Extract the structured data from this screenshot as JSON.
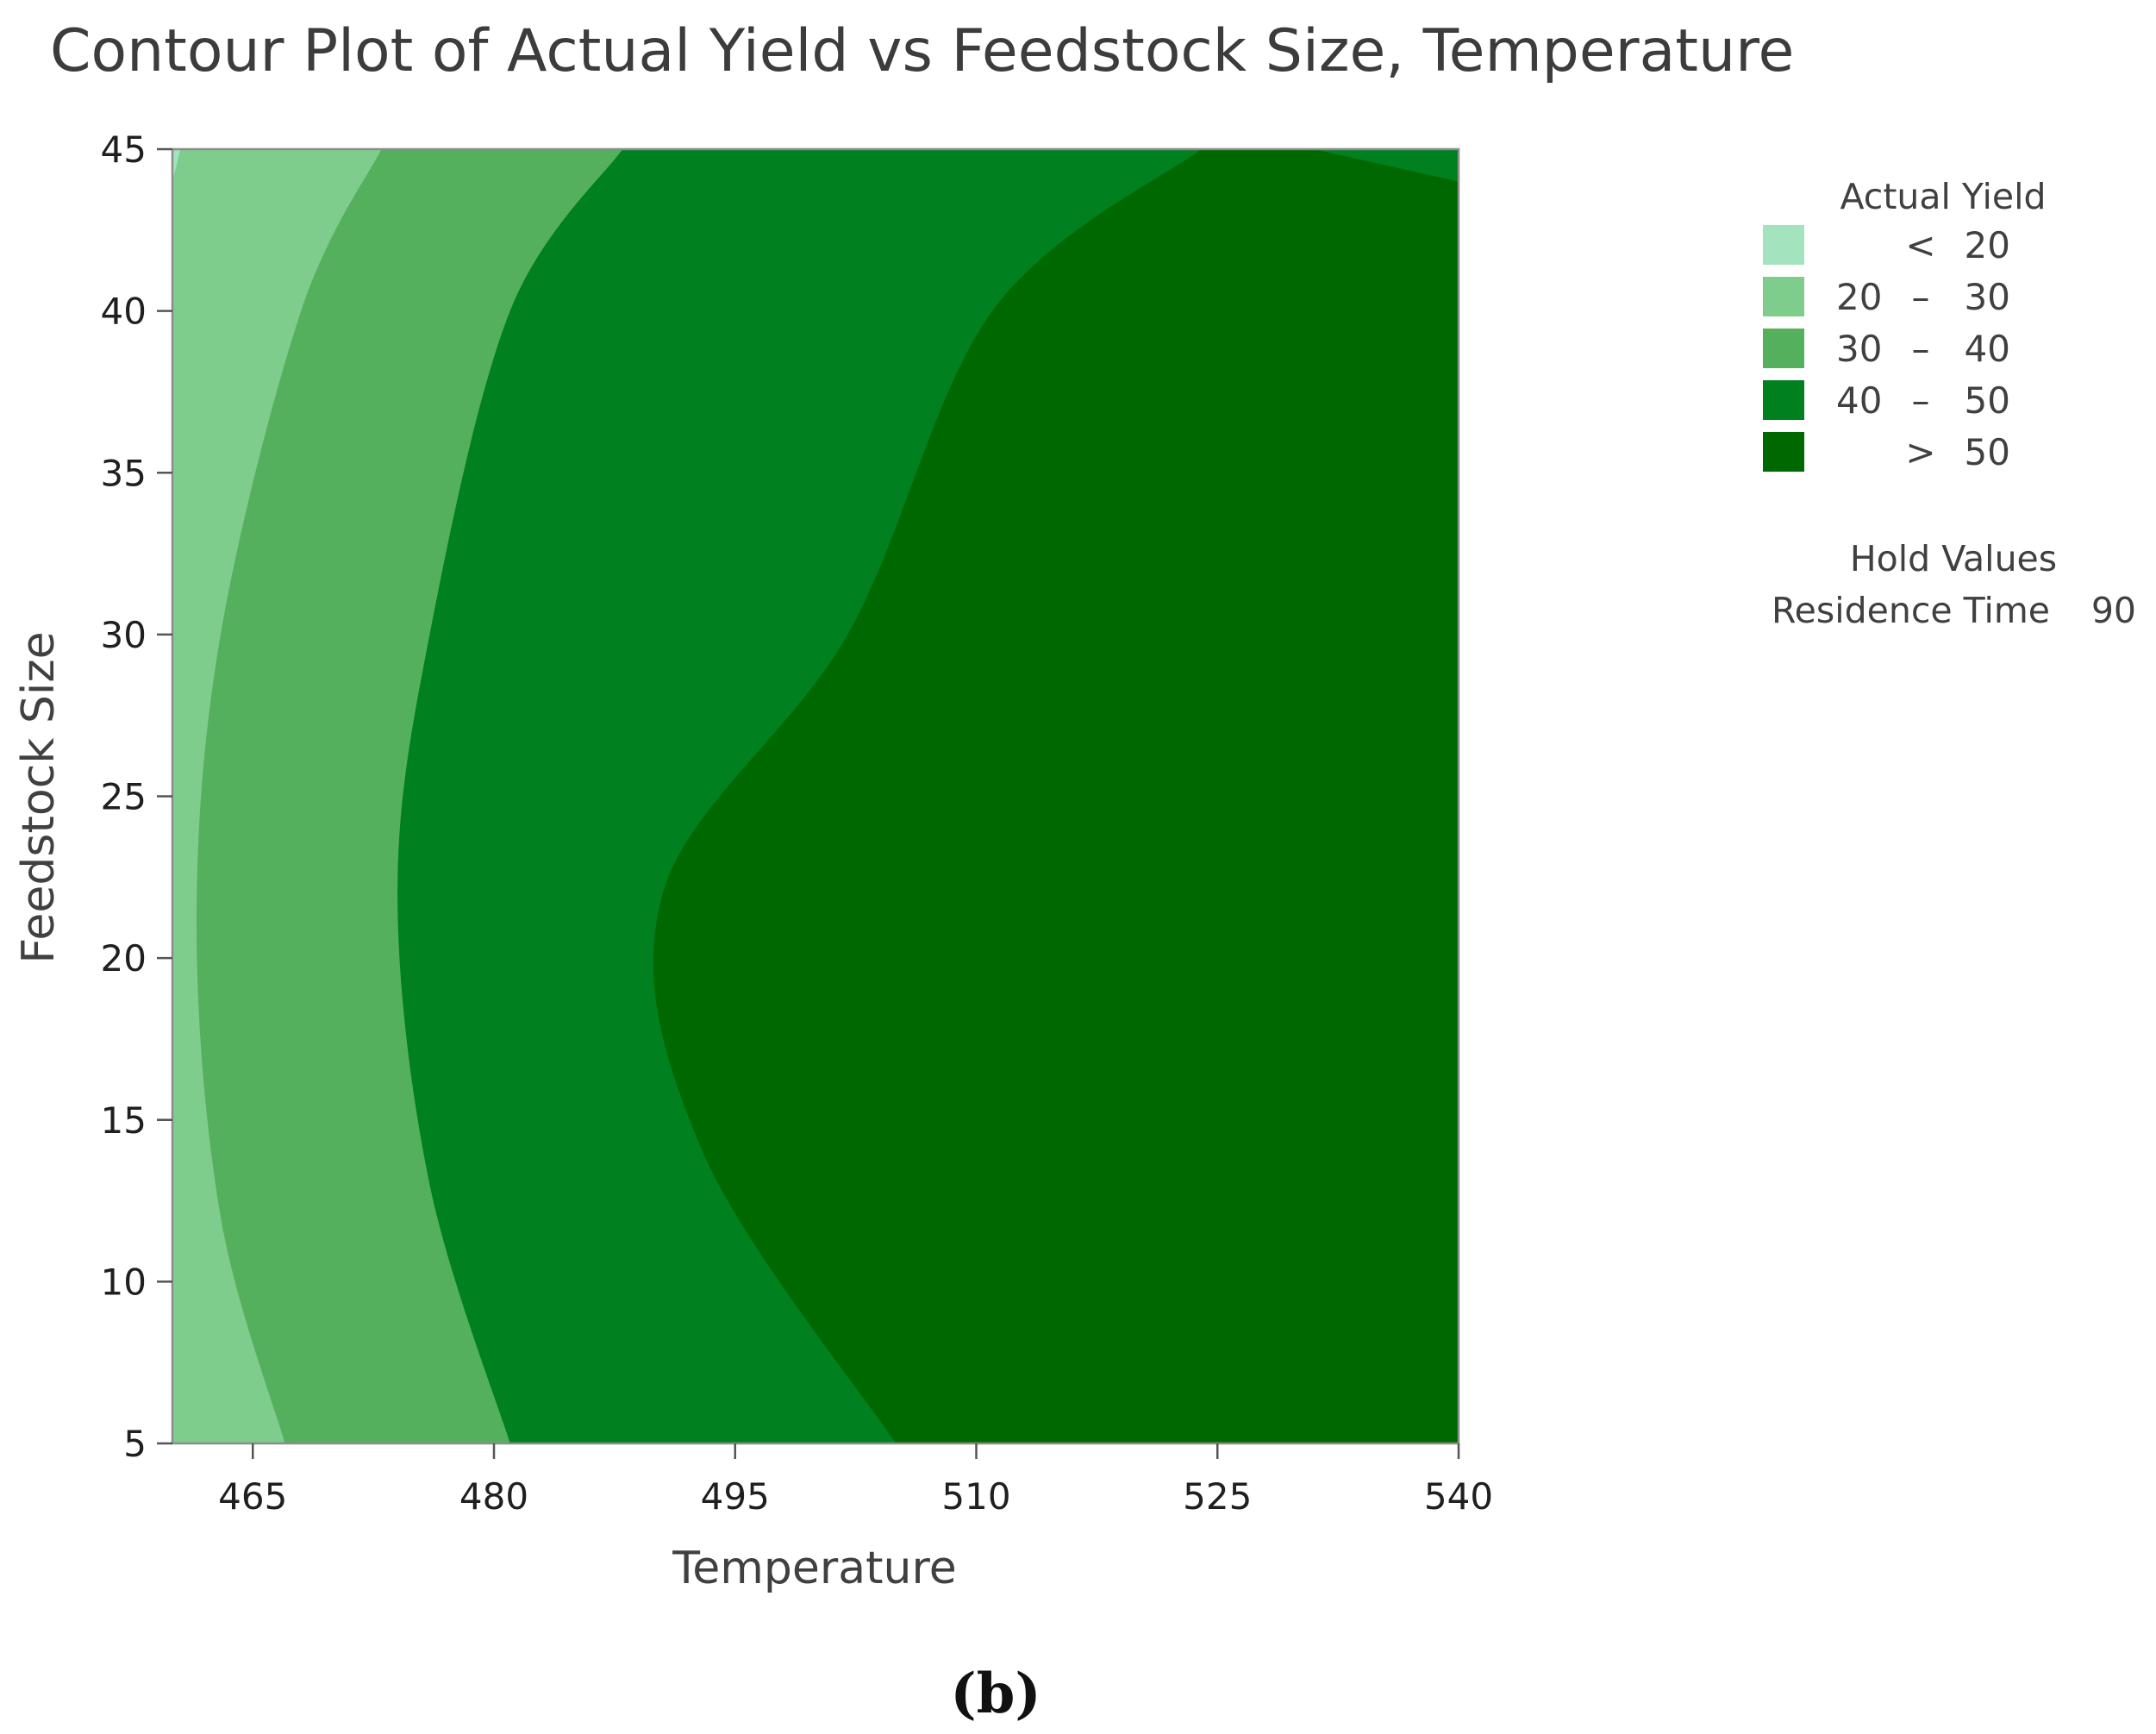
{
  "chart_data": {
    "type": "contour",
    "title": "Contour Plot of Actual Yield vs Feedstock Size, Temperature",
    "xlabel": "Temperature",
    "ylabel": "Feedstock Size",
    "xlim": [
      460,
      540
    ],
    "ylim": [
      5,
      45
    ],
    "x_ticks": [
      "465",
      "480",
      "495",
      "510",
      "525",
      "540"
    ],
    "y_ticks": [
      "5",
      "10",
      "15",
      "20",
      "25",
      "30",
      "35",
      "40",
      "45"
    ],
    "x_tick_values": [
      465,
      480,
      495,
      510,
      525,
      540
    ],
    "y_tick_values": [
      5,
      10,
      15,
      20,
      25,
      30,
      35,
      40,
      45
    ],
    "grid": false,
    "legend_position": "right",
    "legend": {
      "title": "Actual Yield",
      "levels": [
        {
          "low": "",
          "op": "<",
          "high": "20",
          "color": "#a3e3bd"
        },
        {
          "low": "20",
          "op": "–",
          "high": "30",
          "color": "#7fcd8d"
        },
        {
          "low": "30",
          "op": "–",
          "high": "40",
          "color": "#55b05e"
        },
        {
          "low": "40",
          "op": "–",
          "high": "50",
          "color": "#00801f"
        },
        {
          "low": "",
          "op": ">",
          "high": "50",
          "color": "#006800"
        }
      ]
    },
    "contour_boundaries": [
      {
        "level": 20,
        "points": [
          [
            460.5,
            45
          ],
          [
            460,
            44
          ]
        ]
      },
      {
        "level": 30,
        "points": [
          [
            473,
            45
          ],
          [
            468,
            40
          ],
          [
            463,
            30
          ],
          [
            461.5,
            21
          ],
          [
            463,
            12
          ],
          [
            467,
            5
          ]
        ]
      },
      {
        "level": 40,
        "points": [
          [
            488,
            45
          ],
          [
            481,
            40
          ],
          [
            476,
            30
          ],
          [
            474,
            22
          ],
          [
            476,
            13
          ],
          [
            481,
            5
          ]
        ]
      },
      {
        "level": 50,
        "points": [
          [
            524,
            45
          ],
          [
            511,
            40
          ],
          [
            502,
            30
          ],
          [
            490.5,
            22
          ],
          [
            493,
            14
          ],
          [
            505,
            5
          ]
        ],
        "right_edge": [
          [
            531,
            45
          ],
          [
            540,
            44
          ]
        ]
      }
    ],
    "hold_values": {
      "title": "Hold Values",
      "items": [
        {
          "label": "Residence Time",
          "value": "90"
        }
      ]
    },
    "caption": "(b)"
  },
  "colors": {
    "frame": "#8c8c8c",
    "axis": "#555555",
    "text": "#404040"
  }
}
